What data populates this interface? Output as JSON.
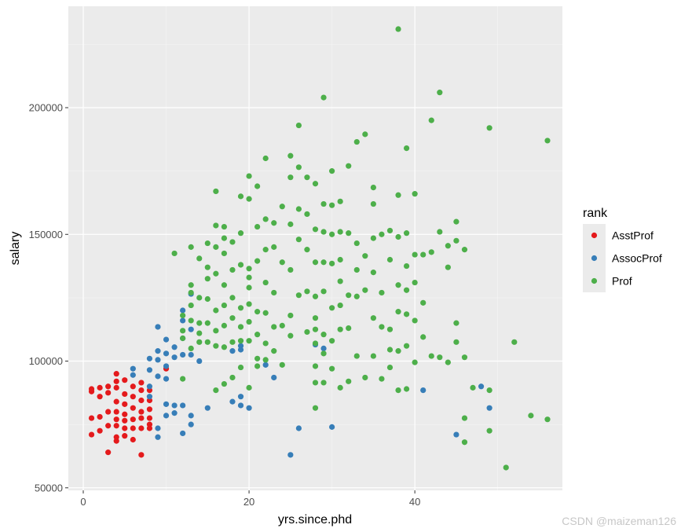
{
  "chart_data": {
    "type": "scatter",
    "xlabel": "yrs.since.phd",
    "ylabel": "salary",
    "xlim": [
      -1.8,
      57.8
    ],
    "ylim": [
      49000,
      240000
    ],
    "x_ticks": [
      0,
      20,
      40
    ],
    "x_tick_labels": [
      "0",
      "20",
      "40"
    ],
    "y_ticks": [
      50000,
      100000,
      150000,
      200000
    ],
    "y_tick_labels": [
      "50000",
      "100000",
      "150000",
      "200000"
    ],
    "grid": true,
    "legend": {
      "title": "rank",
      "position": "right"
    },
    "series": [
      {
        "name": "AsstProf",
        "color": "#e41a1c",
        "points": [
          [
            1,
            88000
          ],
          [
            1,
            89000
          ],
          [
            1,
            77500
          ],
          [
            1,
            71000
          ],
          [
            2,
            89500
          ],
          [
            2,
            86000
          ],
          [
            2,
            78000
          ],
          [
            2,
            72500
          ],
          [
            3,
            90000
          ],
          [
            3,
            87500
          ],
          [
            3,
            80000
          ],
          [
            3,
            74500
          ],
          [
            3,
            64000
          ],
          [
            4,
            95000
          ],
          [
            4,
            92000
          ],
          [
            4,
            89500
          ],
          [
            4,
            84000
          ],
          [
            4,
            80000
          ],
          [
            4,
            77000
          ],
          [
            4,
            74500
          ],
          [
            4,
            70000
          ],
          [
            4,
            68500
          ],
          [
            5,
            92500
          ],
          [
            5,
            87000
          ],
          [
            5,
            83000
          ],
          [
            5,
            79000
          ],
          [
            5,
            76500
          ],
          [
            5,
            73500
          ],
          [
            5,
            70500
          ],
          [
            6,
            90000
          ],
          [
            6,
            86000
          ],
          [
            6,
            81500
          ],
          [
            6,
            77000
          ],
          [
            6,
            73500
          ],
          [
            6,
            69000
          ],
          [
            7,
            91500
          ],
          [
            7,
            88500
          ],
          [
            7,
            84500
          ],
          [
            7,
            80000
          ],
          [
            7,
            77500
          ],
          [
            7,
            73500
          ],
          [
            7,
            63000
          ],
          [
            8,
            88500
          ],
          [
            8,
            84500
          ],
          [
            8,
            81000
          ],
          [
            8,
            77500
          ],
          [
            8,
            75000
          ],
          [
            8,
            73500
          ],
          [
            10,
            97000
          ]
        ]
      },
      {
        "name": "AssocProf",
        "color": "#377eb8",
        "points": [
          [
            6,
            97000
          ],
          [
            6,
            94500
          ],
          [
            8,
            101000
          ],
          [
            8,
            96500
          ],
          [
            8,
            90000
          ],
          [
            8,
            86000
          ],
          [
            9,
            113500
          ],
          [
            9,
            104000
          ],
          [
            9,
            100500
          ],
          [
            9,
            94000
          ],
          [
            9,
            73500
          ],
          [
            9,
            70000
          ],
          [
            10,
            108500
          ],
          [
            10,
            103000
          ],
          [
            10,
            98000
          ],
          [
            10,
            93000
          ],
          [
            10,
            83000
          ],
          [
            10,
            78500
          ],
          [
            11,
            105500
          ],
          [
            11,
            101500
          ],
          [
            11,
            82500
          ],
          [
            11,
            79500
          ],
          [
            12,
            120000
          ],
          [
            12,
            116000
          ],
          [
            12,
            109000
          ],
          [
            12,
            102500
          ],
          [
            12,
            82500
          ],
          [
            12,
            71500
          ],
          [
            13,
            126500
          ],
          [
            13,
            112500
          ],
          [
            13,
            102500
          ],
          [
            13,
            78500
          ],
          [
            13,
            75000
          ],
          [
            14,
            100000
          ],
          [
            15,
            81500
          ],
          [
            18,
            104000
          ],
          [
            18,
            84000
          ],
          [
            19,
            106000
          ],
          [
            19,
            104500
          ],
          [
            19,
            86000
          ],
          [
            19,
            82500
          ],
          [
            20,
            81500
          ],
          [
            22,
            98500
          ],
          [
            23,
            93500
          ],
          [
            25,
            63000
          ],
          [
            26,
            73500
          ],
          [
            28,
            106500
          ],
          [
            29,
            105000
          ],
          [
            30,
            74000
          ],
          [
            41,
            88500
          ],
          [
            45,
            71000
          ],
          [
            48,
            90000
          ],
          [
            49,
            81500
          ]
        ]
      },
      {
        "name": "Prof",
        "color": "#4daf4a",
        "points": [
          [
            11,
            142500
          ],
          [
            12,
            118000
          ],
          [
            12,
            112000
          ],
          [
            12,
            109000
          ],
          [
            12,
            93000
          ],
          [
            13,
            145000
          ],
          [
            13,
            130000
          ],
          [
            13,
            127000
          ],
          [
            13,
            122000
          ],
          [
            13,
            116000
          ],
          [
            13,
            105000
          ],
          [
            14,
            140500
          ],
          [
            14,
            125000
          ],
          [
            14,
            115000
          ],
          [
            14,
            111000
          ],
          [
            14,
            107500
          ],
          [
            15,
            146500
          ],
          [
            15,
            137000
          ],
          [
            15,
            132500
          ],
          [
            15,
            124500
          ],
          [
            15,
            115000
          ],
          [
            15,
            107500
          ],
          [
            16,
            167000
          ],
          [
            16,
            153500
          ],
          [
            16,
            145000
          ],
          [
            16,
            134500
          ],
          [
            16,
            120000
          ],
          [
            16,
            112000
          ],
          [
            16,
            106000
          ],
          [
            16,
            88500
          ],
          [
            17,
            153000
          ],
          [
            17,
            148500
          ],
          [
            17,
            142500
          ],
          [
            17,
            130000
          ],
          [
            17,
            122000
          ],
          [
            17,
            114000
          ],
          [
            17,
            105500
          ],
          [
            17,
            91000
          ],
          [
            18,
            147000
          ],
          [
            18,
            136000
          ],
          [
            18,
            125000
          ],
          [
            18,
            117000
          ],
          [
            18,
            107500
          ],
          [
            18,
            93500
          ],
          [
            19,
            165000
          ],
          [
            19,
            150500
          ],
          [
            19,
            138000
          ],
          [
            19,
            121000
          ],
          [
            19,
            113500
          ],
          [
            19,
            108000
          ],
          [
            19,
            97500
          ],
          [
            20,
            173000
          ],
          [
            20,
            164000
          ],
          [
            20,
            136500
          ],
          [
            20,
            133000
          ],
          [
            20,
            129000
          ],
          [
            20,
            122500
          ],
          [
            20,
            115500
          ],
          [
            20,
            108000
          ],
          [
            20,
            89500
          ],
          [
            21,
            169000
          ],
          [
            21,
            153000
          ],
          [
            21,
            139500
          ],
          [
            21,
            119500
          ],
          [
            21,
            110500
          ],
          [
            21,
            101000
          ],
          [
            21,
            98000
          ],
          [
            22,
            180000
          ],
          [
            22,
            156000
          ],
          [
            22,
            144000
          ],
          [
            22,
            131000
          ],
          [
            22,
            119000
          ],
          [
            22,
            107000
          ],
          [
            22,
            100500
          ],
          [
            23,
            154500
          ],
          [
            23,
            145000
          ],
          [
            23,
            127000
          ],
          [
            23,
            113500
          ],
          [
            23,
            104000
          ],
          [
            24,
            161000
          ],
          [
            24,
            139000
          ],
          [
            24,
            114000
          ],
          [
            24,
            98500
          ],
          [
            25,
            181000
          ],
          [
            25,
            172500
          ],
          [
            25,
            154000
          ],
          [
            25,
            136000
          ],
          [
            25,
            118000
          ],
          [
            25,
            110000
          ],
          [
            26,
            193000
          ],
          [
            26,
            176500
          ],
          [
            26,
            160000
          ],
          [
            26,
            148000
          ],
          [
            26,
            126000
          ],
          [
            27,
            172500
          ],
          [
            27,
            158000
          ],
          [
            27,
            144000
          ],
          [
            27,
            127500
          ],
          [
            27,
            111500
          ],
          [
            28,
            170000
          ],
          [
            28,
            152000
          ],
          [
            28,
            139000
          ],
          [
            28,
            125500
          ],
          [
            28,
            117000
          ],
          [
            28,
            112500
          ],
          [
            28,
            107000
          ],
          [
            28,
            98000
          ],
          [
            28,
            91500
          ],
          [
            28,
            81500
          ],
          [
            29,
            204000
          ],
          [
            29,
            162000
          ],
          [
            29,
            151000
          ],
          [
            29,
            139000
          ],
          [
            29,
            127500
          ],
          [
            29,
            110500
          ],
          [
            29,
            103000
          ],
          [
            29,
            91500
          ],
          [
            30,
            175000
          ],
          [
            30,
            161500
          ],
          [
            30,
            150000
          ],
          [
            30,
            138500
          ],
          [
            30,
            121000
          ],
          [
            30,
            108000
          ],
          [
            30,
            97000
          ],
          [
            31,
            163000
          ],
          [
            31,
            151000
          ],
          [
            31,
            140000
          ],
          [
            31,
            131500
          ],
          [
            31,
            122000
          ],
          [
            31,
            112500
          ],
          [
            31,
            89500
          ],
          [
            32,
            177000
          ],
          [
            32,
            150500
          ],
          [
            32,
            126000
          ],
          [
            32,
            113000
          ],
          [
            32,
            92000
          ],
          [
            33,
            186500
          ],
          [
            33,
            146500
          ],
          [
            33,
            136000
          ],
          [
            33,
            125500
          ],
          [
            33,
            102000
          ],
          [
            34,
            189500
          ],
          [
            34,
            141500
          ],
          [
            34,
            128000
          ],
          [
            34,
            93500
          ],
          [
            35,
            168500
          ],
          [
            35,
            162000
          ],
          [
            35,
            148500
          ],
          [
            35,
            135000
          ],
          [
            35,
            117000
          ],
          [
            35,
            102000
          ],
          [
            36,
            150000
          ],
          [
            36,
            127000
          ],
          [
            36,
            113500
          ],
          [
            36,
            93000
          ],
          [
            37,
            151500
          ],
          [
            37,
            140000
          ],
          [
            37,
            112500
          ],
          [
            37,
            104500
          ],
          [
            37,
            97500
          ],
          [
            38,
            231000
          ],
          [
            38,
            165500
          ],
          [
            38,
            149000
          ],
          [
            38,
            130000
          ],
          [
            38,
            119500
          ],
          [
            38,
            104000
          ],
          [
            38,
            88500
          ],
          [
            39,
            184000
          ],
          [
            39,
            150500
          ],
          [
            39,
            137500
          ],
          [
            39,
            128000
          ],
          [
            39,
            118500
          ],
          [
            39,
            106000
          ],
          [
            39,
            89000
          ],
          [
            40,
            166000
          ],
          [
            40,
            142000
          ],
          [
            40,
            131000
          ],
          [
            40,
            116000
          ],
          [
            40,
            99500
          ],
          [
            41,
            142000
          ],
          [
            41,
            123000
          ],
          [
            41,
            109500
          ],
          [
            42,
            195000
          ],
          [
            42,
            143000
          ],
          [
            42,
            102000
          ],
          [
            43,
            206000
          ],
          [
            43,
            151000
          ],
          [
            43,
            101500
          ],
          [
            44,
            137000
          ],
          [
            44,
            145500
          ],
          [
            44,
            99500
          ],
          [
            45,
            155000
          ],
          [
            45,
            147500
          ],
          [
            45,
            115000
          ],
          [
            45,
            107500
          ],
          [
            46,
            144000
          ],
          [
            46,
            101500
          ],
          [
            46,
            77500
          ],
          [
            46,
            68000
          ],
          [
            47,
            89500
          ],
          [
            49,
            192000
          ],
          [
            49,
            88500
          ],
          [
            49,
            72500
          ],
          [
            51,
            58000
          ],
          [
            52,
            107500
          ],
          [
            54,
            78500
          ],
          [
            56,
            187000
          ],
          [
            56,
            77000
          ]
        ]
      }
    ]
  },
  "watermark": "CSDN @maizeman126"
}
